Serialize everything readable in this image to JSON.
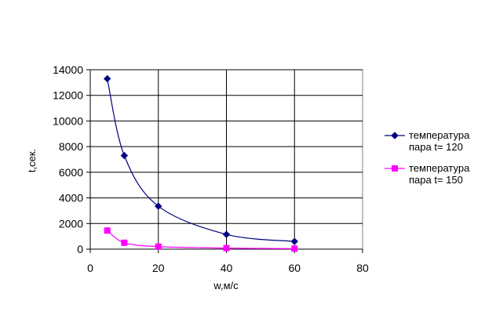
{
  "chart_data": {
    "type": "line",
    "title": "",
    "xlabel": "w,м/с",
    "ylabel": "t,сек.",
    "xlim": [
      0,
      80
    ],
    "ylim": [
      0,
      14000
    ],
    "x_ticks": [
      "0",
      "20",
      "40",
      "60",
      "80"
    ],
    "y_ticks": [
      "0",
      "2000",
      "4000",
      "6000",
      "8000",
      "10000",
      "12000",
      "14000"
    ],
    "grid": "major-both",
    "legend_position": "right",
    "series": [
      {
        "name": "температура пара t= 120",
        "name_lines": [
          "температура",
          "пара t= 120"
        ],
        "color": "#000080",
        "marker": "diamond",
        "x": [
          5,
          10,
          20,
          40,
          60
        ],
        "y": [
          13300,
          7300,
          3350,
          1150,
          600
        ]
      },
      {
        "name": "температура пара t= 150",
        "name_lines": [
          "температура",
          "пара t= 150"
        ],
        "color": "#FF00FF",
        "marker": "square",
        "x": [
          5,
          10,
          20,
          40,
          60
        ],
        "y": [
          1450,
          500,
          200,
          80,
          40
        ]
      }
    ]
  }
}
